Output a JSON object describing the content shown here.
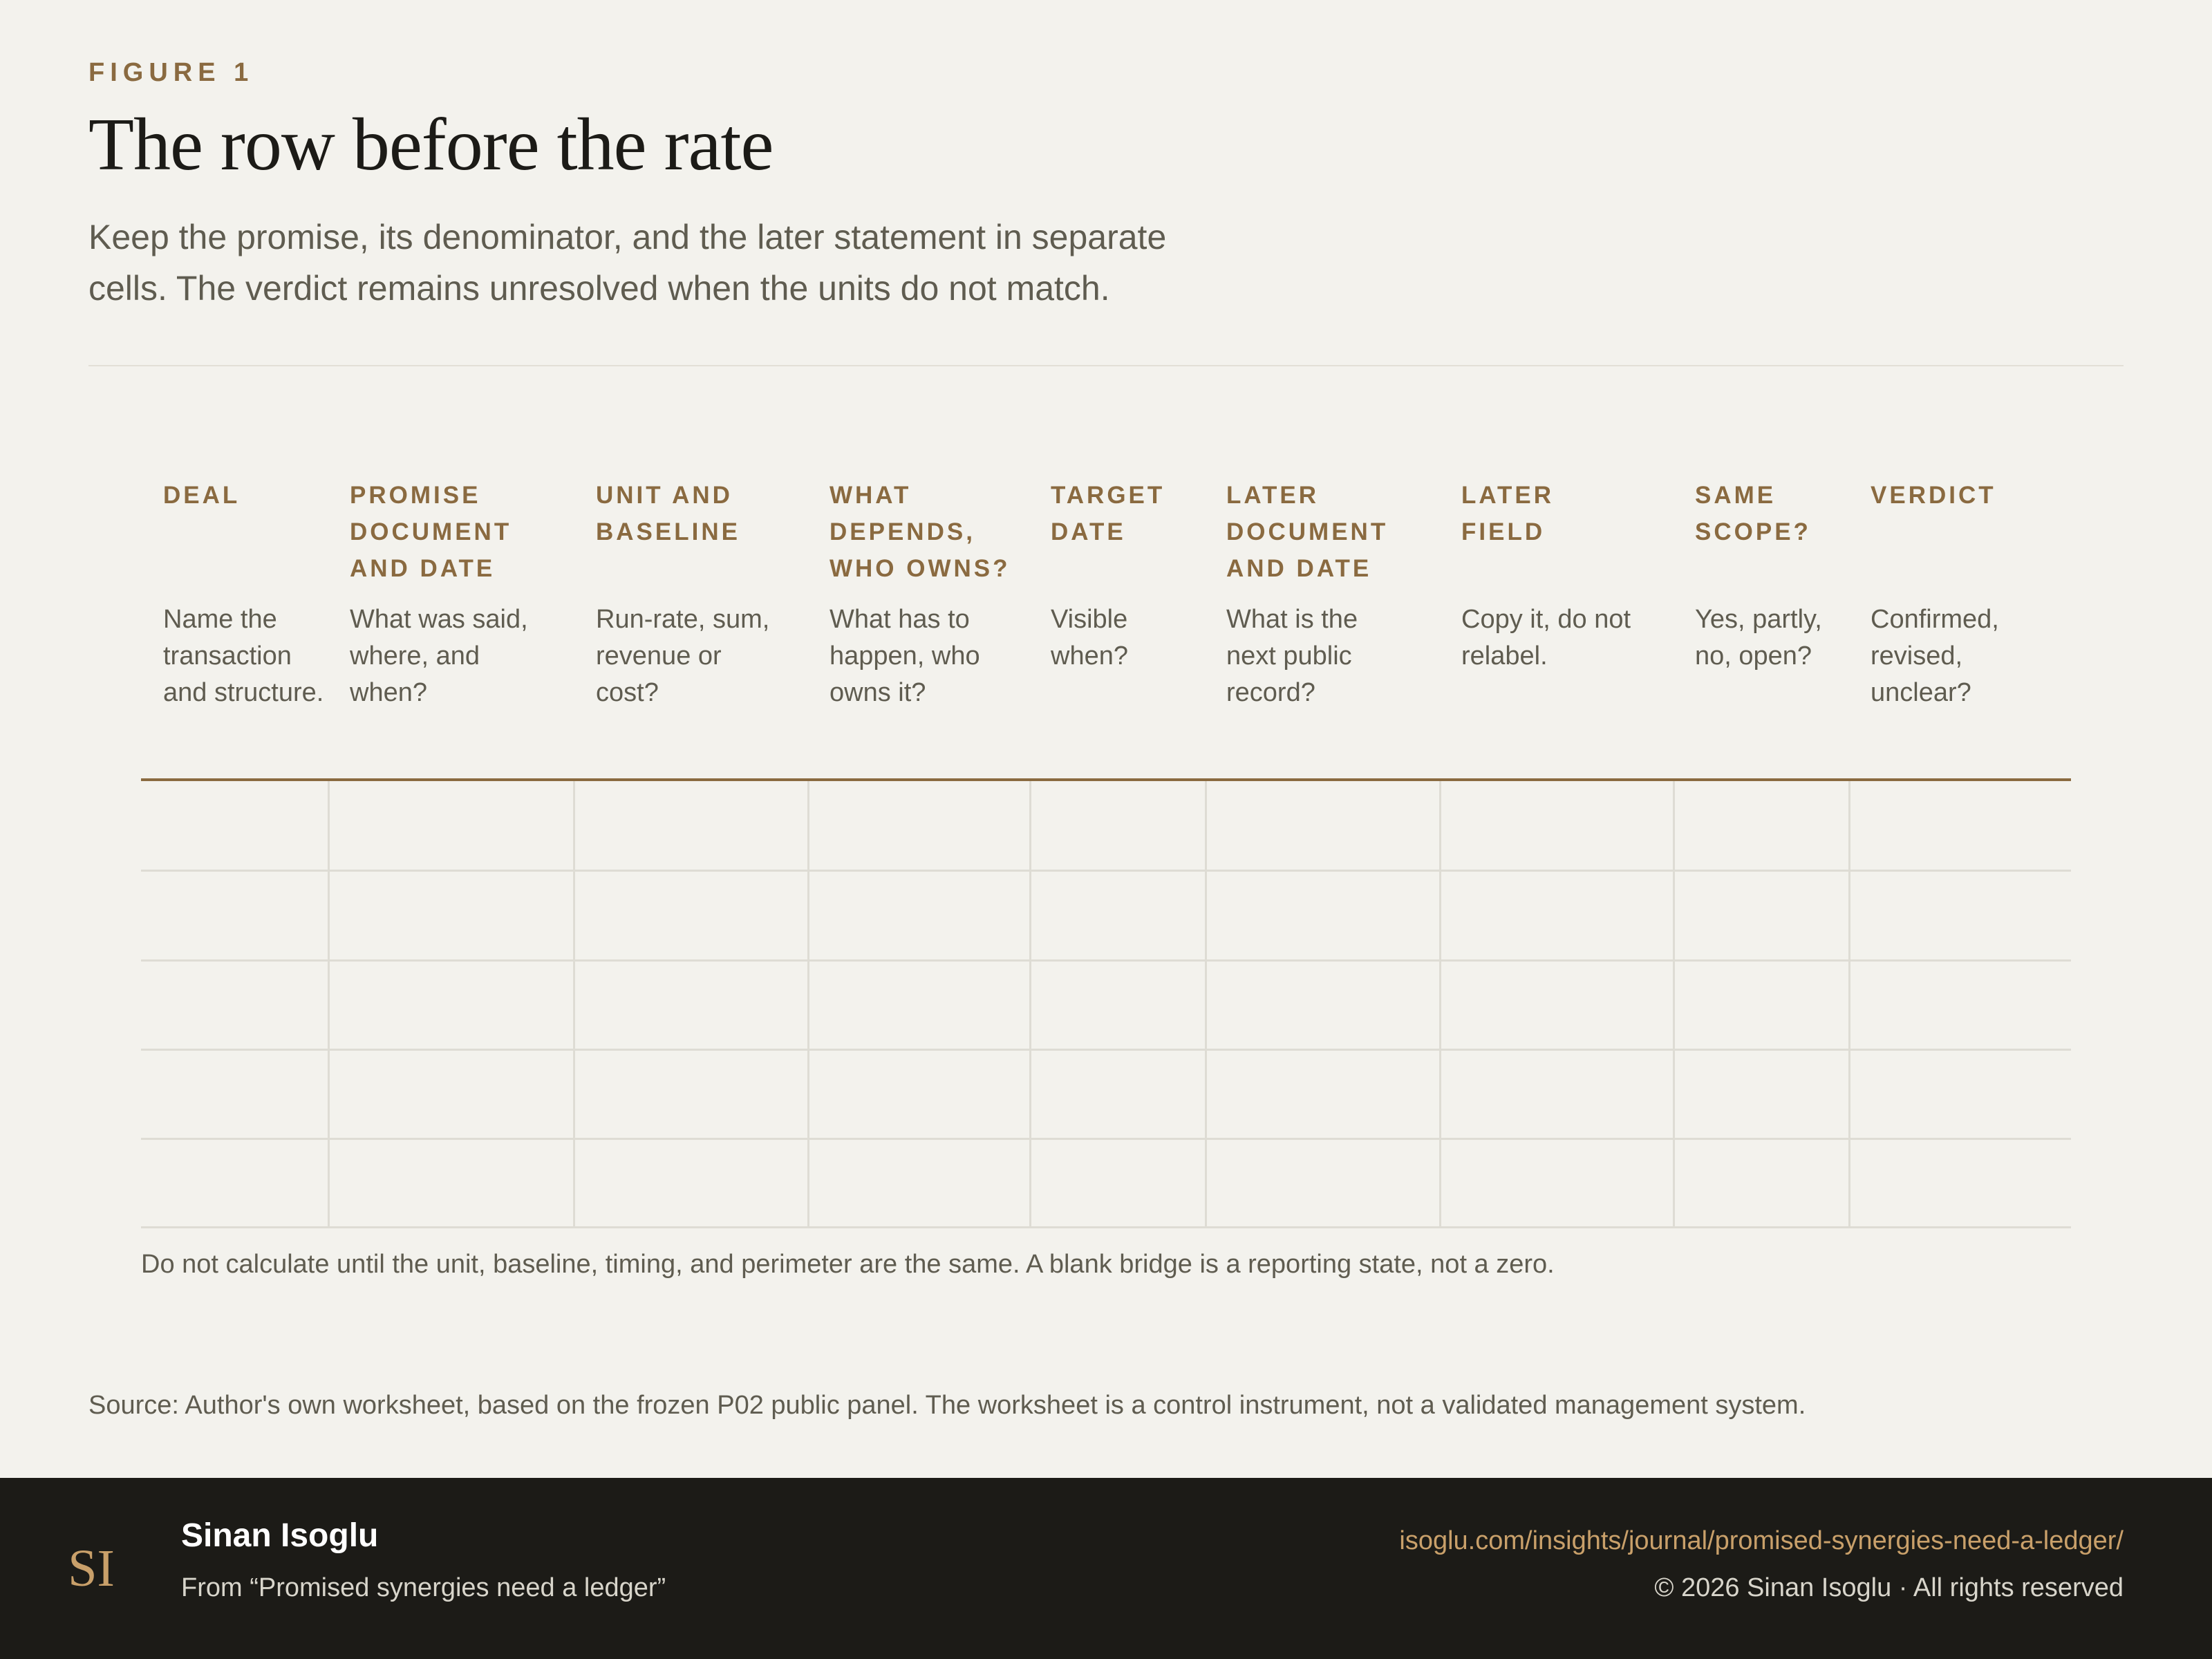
{
  "header": {
    "kicker": "FIGURE 1",
    "title": "The row before the rate",
    "lede": "Keep the promise, its denominator, and the later statement in separate cells. The verdict remains unresolved when the units do not match."
  },
  "table": {
    "columns": [
      {
        "title": "Deal",
        "desc": "Name the transaction and structure."
      },
      {
        "title": "Promise document and date",
        "desc": "What was said, where, and when?"
      },
      {
        "title": "Unit and baseline",
        "desc": "Run-rate, sum, revenue or cost?"
      },
      {
        "title": "What depends, who owns?",
        "desc": "What has to happen, who owns it?"
      },
      {
        "title": "Target date",
        "desc": "Visible when?"
      },
      {
        "title": "Later document and date",
        "desc": "What is the next public record?"
      },
      {
        "title": "Later field",
        "desc": "Copy it, do not relabel."
      },
      {
        "title": "Same scope?",
        "desc": "Yes, partly, no, open?"
      },
      {
        "title": "Verdict",
        "desc": "Confirmed, revised, unclear?"
      }
    ],
    "empty_rows": 5,
    "note": "Do not calculate until the unit, baseline, timing, and perimeter are the same. A blank bridge is a reporting state, not a zero."
  },
  "source": "Source: Author's own worksheet, based on the frozen P02 public panel. The worksheet is a control instrument, not a validated management system.",
  "footer": {
    "logo_text": "SI",
    "author": "Sinan Isoglu",
    "from": "From “Promised synergies need a ledger”",
    "url": "isoglu.com/insights/journal/promised-synergies-need-a-ledger/",
    "copyright": "© 2026 Sinan Isoglu · All rights reserved"
  },
  "colors": {
    "accent": "#8a6a40",
    "background": "#f3f2ed",
    "footer": "#1c1b17",
    "link": "#c9a06a"
  }
}
